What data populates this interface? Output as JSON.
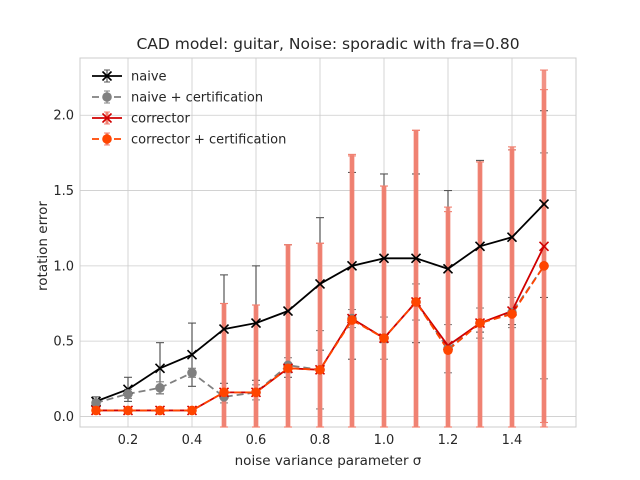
{
  "chart_data": {
    "type": "line",
    "title": "CAD model: guitar, Noise: sporadic with fra=0.80",
    "xlabel": "noise variance parameter σ",
    "ylabel": "rotation error",
    "xlim": [
      0.05,
      1.6
    ],
    "ylim": [
      -0.07,
      2.38
    ],
    "xticks": [
      "0.2",
      "0.4",
      "0.6",
      "0.8",
      "1.0",
      "1.2",
      "1.4"
    ],
    "yticks": [
      "0.0",
      "0.5",
      "1.0",
      "1.5",
      "2.0"
    ],
    "grid": true,
    "legend_position": "top-left",
    "x": [
      0.1,
      0.2,
      0.3,
      0.4,
      0.5,
      0.6,
      0.7,
      0.8,
      0.9,
      1.0,
      1.1,
      1.2,
      1.3,
      1.4,
      1.5
    ],
    "series": [
      {
        "name": "naive",
        "color": "#000000",
        "marker": "x",
        "linestyle": "solid",
        "values": [
          0.1,
          0.18,
          0.32,
          0.41,
          0.58,
          0.62,
          0.7,
          0.88,
          1.0,
          1.05,
          1.05,
          0.98,
          1.13,
          1.19,
          1.41
        ],
        "errors": [
          0.03,
          0.08,
          0.17,
          0.21,
          0.36,
          0.38,
          0.44,
          0.44,
          0.62,
          0.56,
          0.56,
          0.52,
          0.57,
          0.58,
          0.62
        ],
        "error_color": "#555555"
      },
      {
        "name": "naive + certification",
        "color": "#808080",
        "marker": "o",
        "linestyle": "dashed",
        "values": [
          0.09,
          0.15,
          0.19,
          0.29,
          0.13,
          0.16,
          0.34,
          0.31,
          0.65,
          0.52,
          0.76,
          0.45,
          0.62,
          0.69,
          1.0
        ],
        "errors": [
          0.02,
          0.03,
          0.04,
          0.03,
          0.04,
          0.05,
          0.05,
          0.26,
          0.06,
          0.14,
          0.12,
          0.16,
          0.1,
          0.1,
          0.75
        ],
        "error_color": "#808080"
      },
      {
        "name": "corrector",
        "color": "#d00000",
        "marker": "x",
        "linestyle": "solid",
        "values": [
          0.04,
          0.04,
          0.04,
          0.04,
          0.16,
          0.16,
          0.32,
          0.31,
          0.65,
          0.52,
          0.76,
          0.47,
          0.62,
          0.7,
          1.13
        ],
        "errors": [
          0.02,
          0.02,
          0.02,
          0.02,
          0.59,
          0.58,
          0.82,
          0.84,
          1.09,
          1.01,
          1.14,
          0.92,
          1.07,
          1.09,
          1.17
        ],
        "error_color": "#f08070"
      },
      {
        "name": "corrector + certification",
        "color": "#ff4500",
        "marker": "o",
        "linestyle": "dashed",
        "values": [
          0.04,
          0.04,
          0.04,
          0.04,
          0.16,
          0.16,
          0.32,
          0.31,
          0.64,
          0.52,
          0.76,
          0.44,
          0.62,
          0.68,
          1.0
        ],
        "errors": [
          0.02,
          0.02,
          0.02,
          0.02,
          0.59,
          0.58,
          0.82,
          0.84,
          1.09,
          1.01,
          1.14,
          0.92,
          1.07,
          1.09,
          1.17
        ],
        "error_color": "#f08070"
      }
    ]
  }
}
